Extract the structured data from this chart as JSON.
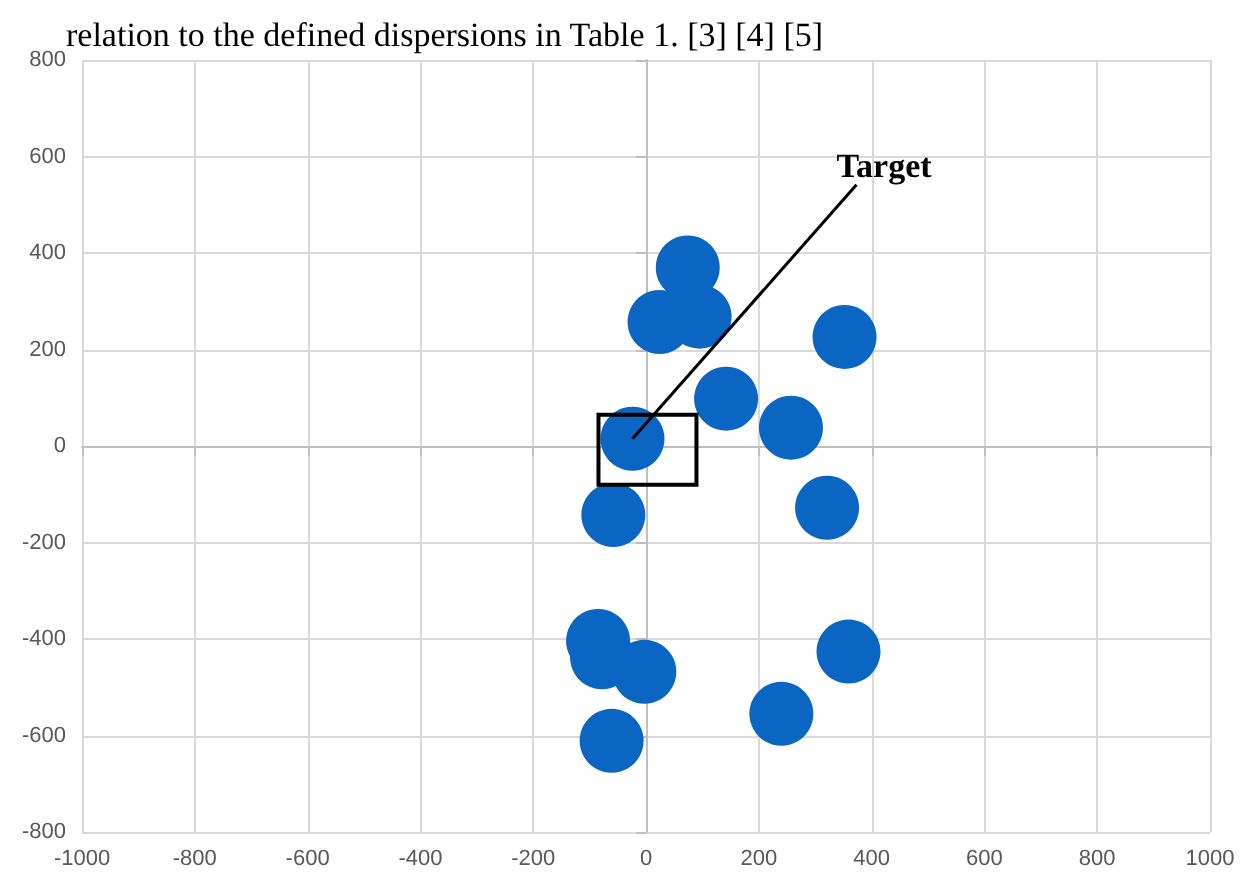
{
  "chart_data": {
    "type": "scatter",
    "annotations": [
      "relation to the defined dispersions in Table 1. [3] [4] [5]",
      {
        "text": "Target",
        "x": -24,
        "y": 15
      }
    ],
    "x": [
      74,
      24,
      95,
      352,
      142,
      257,
      -24,
      -58,
      321,
      -85,
      -78,
      -3,
      359,
      240,
      -61
    ],
    "series": [
      {
        "color": "#0a66c2",
        "values": [
          370,
          257,
          268,
          226,
          98,
          38,
          15,
          -143,
          -128,
          -404,
          -438,
          -468,
          -426,
          -555,
          -611
        ]
      }
    ],
    "xlim": [
      -1000,
      1000
    ],
    "xticks": [
      -1000,
      -800,
      -600,
      -400,
      -200,
      0,
      200,
      400,
      600,
      800,
      1000
    ],
    "ylim": [
      -800,
      800
    ],
    "yticks": [
      -800,
      -600,
      -400,
      -200,
      0,
      200,
      400,
      600,
      800
    ],
    "grid": true,
    "marker": "circle"
  }
}
